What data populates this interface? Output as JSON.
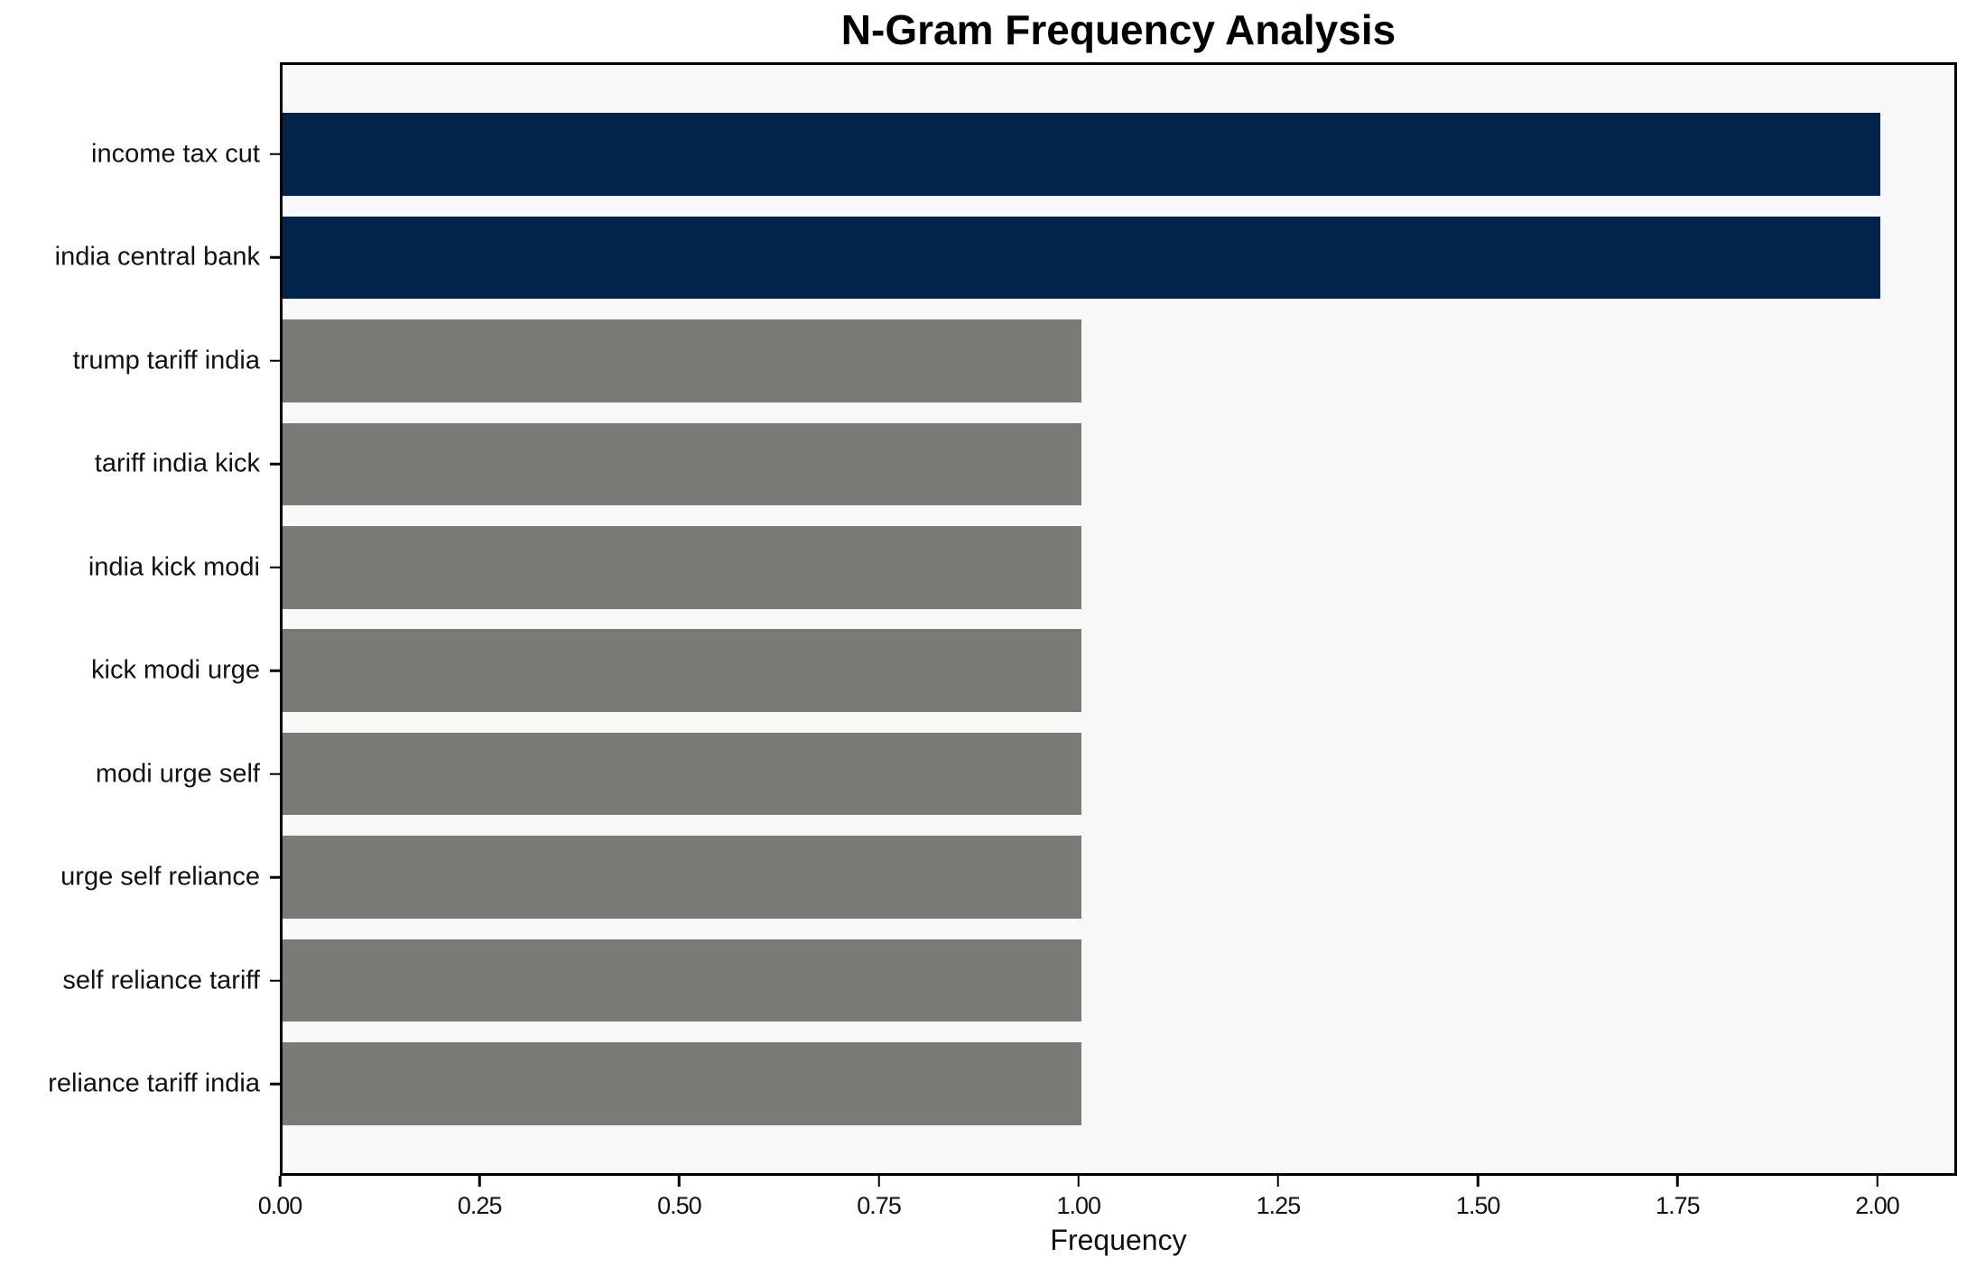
{
  "title": "N-Gram Frequency Analysis",
  "chart_data": {
    "type": "bar",
    "orientation": "horizontal",
    "title": "N-Gram Frequency Analysis",
    "xlabel": "Frequency",
    "ylabel": "",
    "categories": [
      "income tax cut",
      "india central bank",
      "trump tariff india",
      "tariff india kick",
      "india kick modi",
      "kick modi urge",
      "modi urge self",
      "urge self reliance",
      "self reliance tariff",
      "reliance tariff india"
    ],
    "values": [
      2,
      2,
      1,
      1,
      1,
      1,
      1,
      1,
      1,
      1
    ],
    "bar_colors": [
      "#02234c",
      "#02234c",
      "#7b7a77",
      "#7b7a77",
      "#7b7a77",
      "#7b7a77",
      "#7b7a77",
      "#7b7a77",
      "#7b7a77",
      "#7b7a77"
    ],
    "xlim": [
      0,
      2.1
    ],
    "x_ticks": [
      0,
      0.25,
      0.5,
      0.75,
      1.0,
      1.25,
      1.5,
      1.75,
      2.0
    ],
    "x_tick_labels": [
      "0.00",
      "0.25",
      "0.50",
      "0.75",
      "1.00",
      "1.25",
      "1.50",
      "1.75",
      "2.00"
    ],
    "grid": false,
    "legend": null,
    "colors": {
      "highlight": "#02234c",
      "default": "#7b7a77",
      "plot_background": "#f8f8f8",
      "frame": "#000000"
    }
  }
}
